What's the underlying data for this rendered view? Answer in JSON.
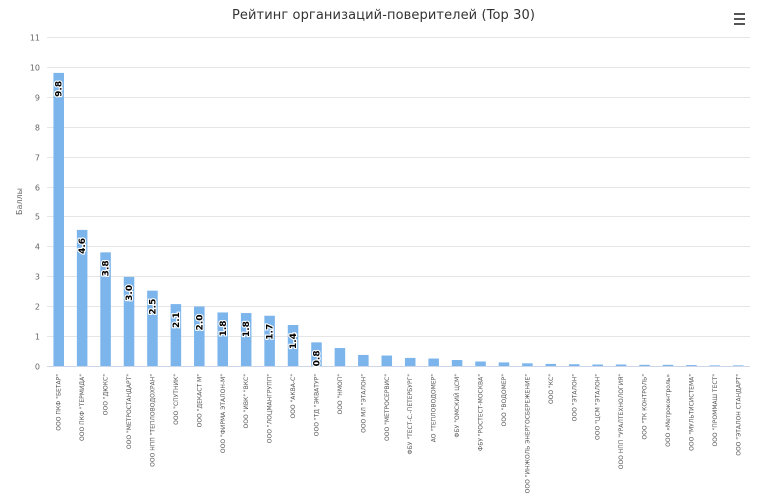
{
  "chart_data": {
    "type": "bar",
    "title": "Рейтинг организаций-поверителей (Top 30)",
    "ylabel": "Баллы",
    "xlabel": "",
    "ylim": [
      0,
      11
    ],
    "yticks": [
      0,
      1,
      2,
      3,
      4,
      5,
      6,
      7,
      8,
      9,
      10,
      11
    ],
    "grid": true,
    "legend": "none",
    "bar_color": "#7cb5ec",
    "categories": [
      "ООО ПКФ \"БЕТАР\"",
      "ООО ПКФ \"ТЕРМИДА\"",
      "ООО \"ДЮКС\"",
      "ООО \"МЕТРОСТАНДАРТ\"",
      "ООО НПП \"ТЕПЛОВОДОХРАН\"",
      "ООО \"СПУТНИК\"",
      "ООО \"ДЕКАСТ М\"",
      "ООО \"ФИРМА ЭТАЛОН-М\"",
      "ООО \"ИВК\" \"ВКС\"",
      "ООО \"ЛОЦМАНГРУПП\"",
      "ООО \"АКВА-С\"",
      "ООО \"ТД \"ЭКВАТУР\"",
      "ООО \"НМОП\"",
      "ООО МЛ \"ЭТАЛОН\"",
      "ООО \"МЕТРОСЕРВИС\"",
      "ФБУ \"ТЕСТ-С.-ПЕТЕРБУРГ\"",
      "АО \"ТЕПЛОВОДОМЕР\"",
      "ФБУ \"ОМСКИЙ ЦСМ\"",
      "ФБУ \"РОСТЕСТ-МОСКВА\"",
      "ООО \"ВОДОМЕР\"",
      "ООО \"ИНЖОЛЬ ЭНЕРГОСБЕРЕЖЕНИЕ\"",
      "ООО \"КС\"",
      "ООО \"ЭТАЛОН\"",
      "ООО \"ЦСМ \"ЭТАЛОН\"",
      "ООО НПП \"УРАЛТЕХНОЛОГИЯ\"",
      "ООО \"ТК КОНТРОЛЬ\"",
      "ООО «Метроконтроль»",
      "ООО \"МУЛЬТИСИСТЕМА\"",
      "ООО \"ПРОММАШ ТЕСТ\"",
      "ООО \"ЭТАЛОН СТАНДАРТ\""
    ],
    "values": [
      9.8,
      4.55,
      3.8,
      2.98,
      2.52,
      2.07,
      1.99,
      1.79,
      1.77,
      1.68,
      1.37,
      0.79,
      0.6,
      0.37,
      0.35,
      0.27,
      0.25,
      0.2,
      0.15,
      0.12,
      0.09,
      0.07,
      0.06,
      0.05,
      0.05,
      0.04,
      0.04,
      0.03,
      0.02,
      0.02
    ],
    "data_labels": [
      "9.8",
      "4.6",
      "3.8",
      "3.0",
      "2.5",
      "2.1",
      "2.0",
      "1.8",
      "1.8",
      "1.7",
      "1.4",
      "0.8",
      "",
      "",
      "",
      "",
      "",
      "",
      "",
      "",
      "",
      "",
      "",
      "",
      "",
      "",
      "",
      "",
      "",
      ""
    ]
  },
  "toolbar": {
    "menu_icon": "hamburger-menu-icon"
  }
}
